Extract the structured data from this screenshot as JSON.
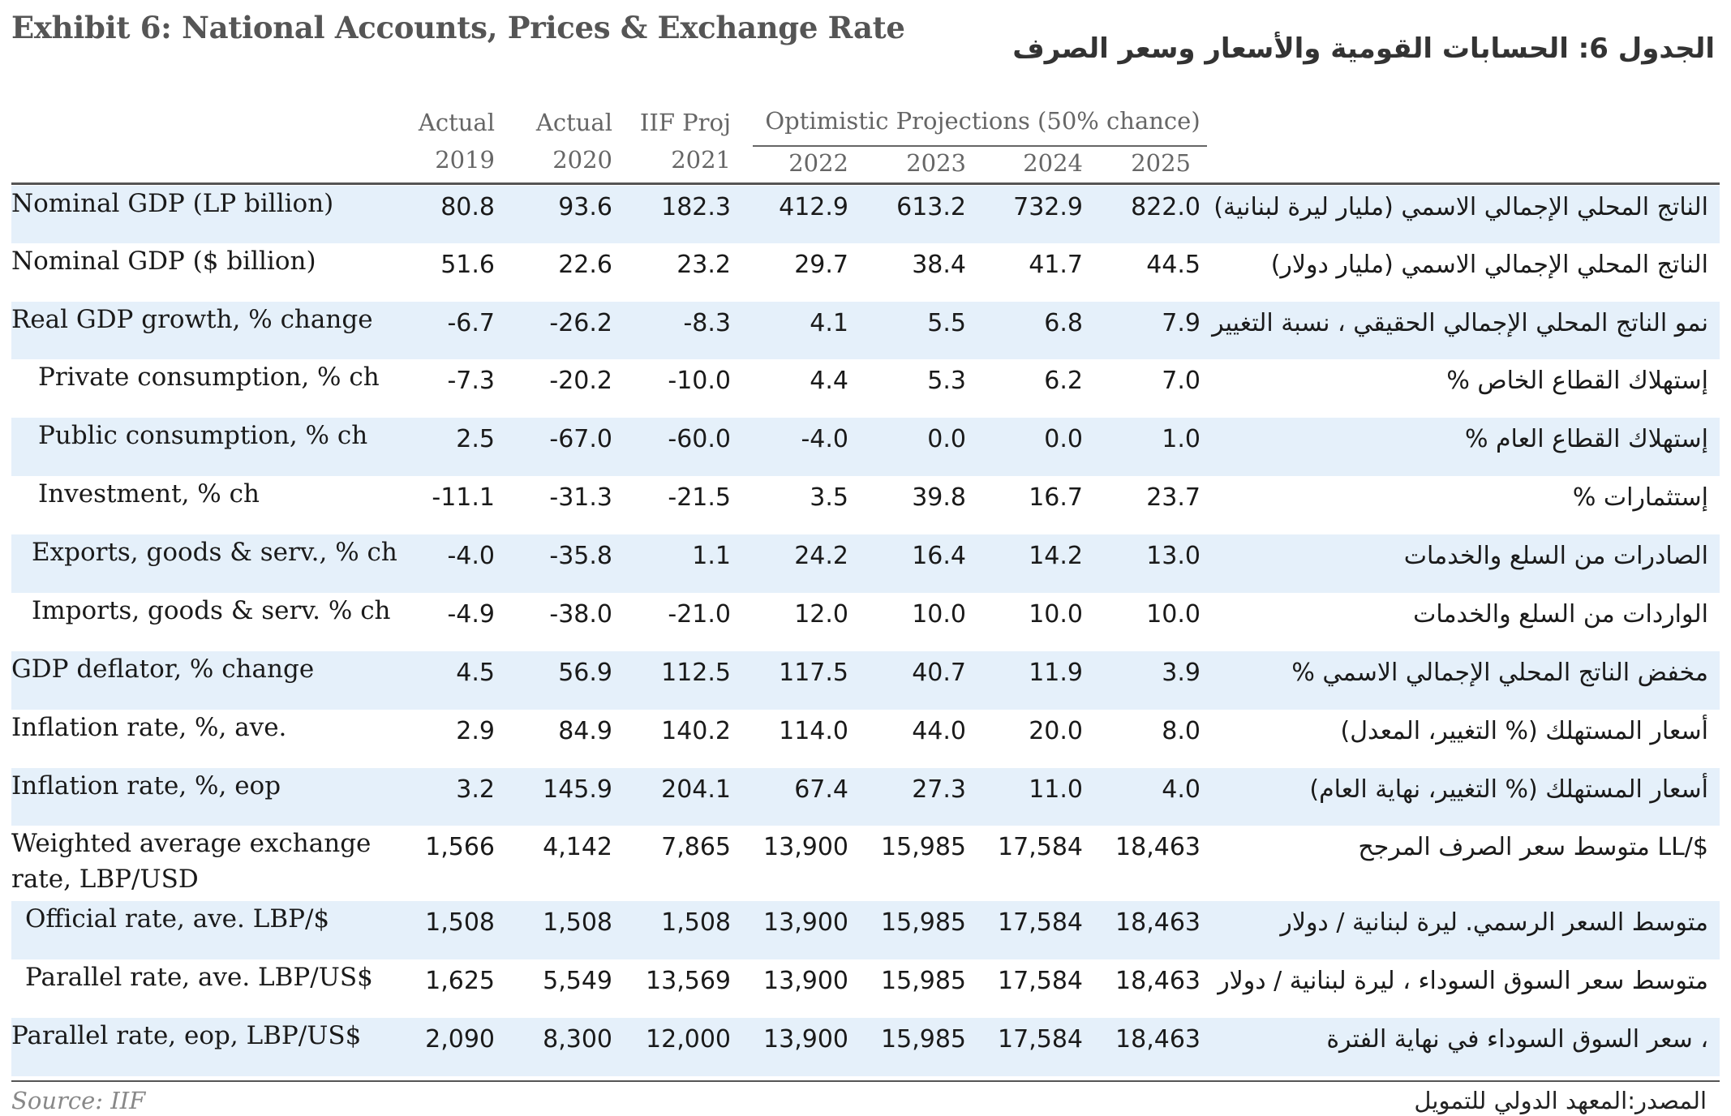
{
  "title_en": "Exhibit 6: National Accounts, Prices & Exchange Rate",
  "title_ar": "الجدول 6: الحسابات القومية والأسعار وسعر الصرف",
  "optimistic_label": "Optimistic Projections (50% chance)",
  "columns": [
    {
      "top": "Actual",
      "year": "2019"
    },
    {
      "top": "Actual",
      "year": "2020"
    },
    {
      "top": "IIF Proj",
      "year": "2021"
    },
    {
      "top": "",
      "year": "2022"
    },
    {
      "top": "",
      "year": "2023"
    },
    {
      "top": "",
      "year": "2024"
    },
    {
      "top": "",
      "year": "2025"
    }
  ],
  "rows": [
    {
      "label": "Nominal GDP (LP billion)",
      "ar": "الناتج المحلي الإجمالي الاسمي (مليار ليرة لبنانية)",
      "values": [
        "80.8",
        "93.6",
        "182.3",
        "412.9",
        "613.2",
        "732.9",
        "822.0"
      ]
    },
    {
      "label": "Nominal GDP ($ billion)",
      "ar": "الناتج المحلي الإجمالي الاسمي (مليار دولار)",
      "values": [
        "51.6",
        "22.6",
        "23.2",
        "29.7",
        "38.4",
        "41.7",
        "44.5"
      ]
    },
    {
      "label": "Real GDP growth, % change",
      "ar": "نمو الناتج المحلي الإجمالي الحقيقي ، نسبة التغيير",
      "values": [
        "-6.7",
        "-26.2",
        "-8.3",
        "4.1",
        "5.5",
        "6.8",
        "7.9"
      ]
    },
    {
      "label": "Private consumption, % ch",
      "ar": "إستهلاك القطاع الخاص   %",
      "values": [
        "-7.3",
        "-20.2",
        "-10.0",
        "4.4",
        "5.3",
        "6.2",
        "7.0"
      ]
    },
    {
      "label": "Public consumption, % ch",
      "ar": "إستهلاك القطاع العام   %",
      "values": [
        "2.5",
        "-67.0",
        "-60.0",
        "-4.0",
        "0.0",
        "0.0",
        "1.0"
      ]
    },
    {
      "label": "Investment, % ch",
      "ar": "إستثمارات   %",
      "values": [
        "-11.1",
        "-31.3",
        "-21.5",
        "3.5",
        "39.8",
        "16.7",
        "23.7"
      ]
    },
    {
      "label": "Exports, goods & serv., % ch",
      "ar": "الصادرات من السلع والخدمات",
      "values": [
        "-4.0",
        "-35.8",
        "1.1",
        "24.2",
        "16.4",
        "14.2",
        "13.0"
      ]
    },
    {
      "label": "Imports, goods & serv. % ch",
      "ar": "الواردات من السلع والخدمات",
      "values": [
        "-4.9",
        "-38.0",
        "-21.0",
        "12.0",
        "10.0",
        "10.0",
        "10.0"
      ]
    },
    {
      "label": "GDP deflator, % change",
      "ar": "مخفض  الناتج المحلي الإجمالي الاسمي %",
      "values": [
        "4.5",
        "56.9",
        "112.5",
        "117.5",
        "40.7",
        "11.9",
        "3.9"
      ]
    },
    {
      "label": "Inflation rate, %, ave.",
      "ar": "أسعار المستهلك (% التغيير، المعدل)",
      "values": [
        "2.9",
        "84.9",
        "140.2",
        "114.0",
        "44.0",
        "20.0",
        "8.0"
      ]
    },
    {
      "label": "Inflation rate, %, eop",
      "ar": "أسعار المستهلك (% التغيير، نهاية العام)",
      "values": [
        "3.2",
        "145.9",
        "204.1",
        "67.4",
        "27.3",
        "11.0",
        "4.0"
      ]
    },
    {
      "label": "Weighted average exchange rate, LBP/USD",
      "ar": "$/LL متوسط سعر الصرف المرجح",
      "values": [
        "1,566",
        "4,142",
        "7,865",
        "13,900",
        "15,985",
        "17,584",
        "18,463"
      ]
    },
    {
      "label": "Official rate, ave. LBP/$",
      "ar": "متوسط السعر الرسمي. ليرة لبنانية / دولار",
      "values": [
        "1,508",
        "1,508",
        "1,508",
        "13,900",
        "15,985",
        "17,584",
        "18,463"
      ]
    },
    {
      "label": "Parallel rate, ave. LBP/US$",
      "ar": "متوسط سعر السوق السوداء ، ليرة لبنانية / دولار",
      "values": [
        "1,625",
        "5,549",
        "13,569",
        "13,900",
        "15,985",
        "17,584",
        "18,463"
      ]
    },
    {
      "label": "Parallel rate, eop, LBP/US$",
      "ar": "، سعر السوق السوداء في نهاية الفترة",
      "values": [
        "2,090",
        "8,300",
        "12,000",
        "13,900",
        "15,985",
        "17,584",
        "18,463"
      ]
    }
  ],
  "source_en": "Source: IIF",
  "source_ar": "المصدر:المعهد الدولي للتمويل"
}
